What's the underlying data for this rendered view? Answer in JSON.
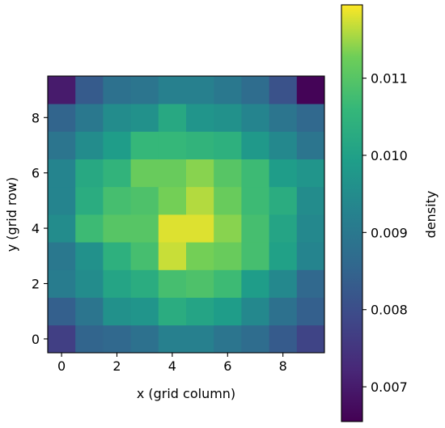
{
  "chart_data": {
    "type": "heatmap",
    "title": "",
    "xlabel": "x (grid column)",
    "ylabel": "y (grid row)",
    "colorbar_label": "density",
    "colormap": "viridis",
    "xlim": [
      -0.5,
      9.5
    ],
    "ylim": [
      -0.5,
      9.5
    ],
    "x_ticks": [
      0,
      2,
      4,
      6,
      8
    ],
    "y_ticks": [
      0,
      2,
      4,
      6,
      8
    ],
    "x_tick_labels": [
      "0",
      "2",
      "4",
      "6",
      "8"
    ],
    "y_tick_labels": [
      "0",
      "2",
      "4",
      "6",
      "8"
    ],
    "colorbar_range": [
      0.00655,
      0.01195
    ],
    "colorbar_ticks": [
      0.007,
      0.008,
      0.009,
      0.01,
      0.011
    ],
    "colorbar_tick_labels": [
      "0.007",
      "0.008",
      "0.009",
      "0.010",
      "0.011"
    ],
    "rows_description": "z[0] is y=0 (bottom row) ... z[9] is y=9 (top row); each row lists x=0..9",
    "z": [
      [
        0.0077,
        0.0085,
        0.0086,
        0.0088,
        0.0092,
        0.0092,
        0.0089,
        0.0087,
        0.0083,
        0.0078
      ],
      [
        0.0084,
        0.0089,
        0.0096,
        0.0097,
        0.0103,
        0.0101,
        0.0099,
        0.0094,
        0.0088,
        0.0084
      ],
      [
        0.0091,
        0.0095,
        0.0101,
        0.0103,
        0.0108,
        0.0109,
        0.0107,
        0.0099,
        0.0094,
        0.0086
      ],
      [
        0.009,
        0.0096,
        0.0104,
        0.0108,
        0.0117,
        0.0113,
        0.0112,
        0.0108,
        0.01,
        0.0093
      ],
      [
        0.0095,
        0.0107,
        0.011,
        0.011,
        0.0118,
        0.0118,
        0.0114,
        0.0108,
        0.0101,
        0.0094
      ],
      [
        0.0093,
        0.0103,
        0.0108,
        0.0109,
        0.0113,
        0.0116,
        0.0112,
        0.0107,
        0.0103,
        0.0095
      ],
      [
        0.0093,
        0.0102,
        0.0105,
        0.0112,
        0.0112,
        0.0114,
        0.011,
        0.0107,
        0.0099,
        0.0097
      ],
      [
        0.0089,
        0.0095,
        0.0099,
        0.0106,
        0.0106,
        0.0105,
        0.0104,
        0.0098,
        0.0094,
        0.0089
      ],
      [
        0.0085,
        0.009,
        0.0095,
        0.0096,
        0.0102,
        0.0097,
        0.0096,
        0.0093,
        0.0089,
        0.0086
      ],
      [
        0.007,
        0.0083,
        0.0088,
        0.0089,
        0.0092,
        0.0092,
        0.009,
        0.0087,
        0.0081,
        0.0066
      ]
    ]
  }
}
